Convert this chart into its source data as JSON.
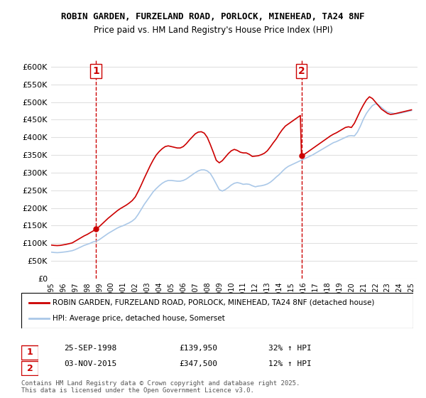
{
  "title1": "ROBIN GARDEN, FURZELAND ROAD, PORLOCK, MINEHEAD, TA24 8NF",
  "title2": "Price paid vs. HM Land Registry's House Price Index (HPI)",
  "ylabel": "",
  "ylim": [
    0,
    620000
  ],
  "yticks": [
    0,
    50000,
    100000,
    150000,
    200000,
    250000,
    300000,
    350000,
    400000,
    450000,
    500000,
    550000,
    600000
  ],
  "ytick_labels": [
    "£0",
    "£50K",
    "£100K",
    "£150K",
    "£200K",
    "£250K",
    "£300K",
    "£350K",
    "£400K",
    "£450K",
    "£500K",
    "£550K",
    "£600K"
  ],
  "background_color": "#ffffff",
  "grid_color": "#e0e0e0",
  "line1_color": "#cc0000",
  "line2_color": "#aac8e8",
  "marker_color": "#cc0000",
  "vline_color": "#cc0000",
  "legend_label1": "ROBIN GARDEN, FURZELAND ROAD, PORLOCK, MINEHEAD, TA24 8NF (detached house)",
  "legend_label2": "HPI: Average price, detached house, Somerset",
  "purchase1": {
    "date": "25-SEP-1998",
    "price": 139950,
    "pct": "32% ↑ HPI",
    "label": "1",
    "x": 1998.73
  },
  "purchase2": {
    "date": "03-NOV-2015",
    "price": 347500,
    "pct": "12% ↑ HPI",
    "label": "2",
    "x": 2015.84
  },
  "footer": "Contains HM Land Registry data © Crown copyright and database right 2025.\nThis data is licensed under the Open Government Licence v3.0.",
  "hpi_data": {
    "years": [
      1995.0,
      1995.25,
      1995.5,
      1995.75,
      1996.0,
      1996.25,
      1996.5,
      1996.75,
      1997.0,
      1997.25,
      1997.5,
      1997.75,
      1998.0,
      1998.25,
      1998.5,
      1998.75,
      1999.0,
      1999.25,
      1999.5,
      1999.75,
      2000.0,
      2000.25,
      2000.5,
      2000.75,
      2001.0,
      2001.25,
      2001.5,
      2001.75,
      2002.0,
      2002.25,
      2002.5,
      2002.75,
      2003.0,
      2003.25,
      2003.5,
      2003.75,
      2004.0,
      2004.25,
      2004.5,
      2004.75,
      2005.0,
      2005.25,
      2005.5,
      2005.75,
      2006.0,
      2006.25,
      2006.5,
      2006.75,
      2007.0,
      2007.25,
      2007.5,
      2007.75,
      2008.0,
      2008.25,
      2008.5,
      2008.75,
      2009.0,
      2009.25,
      2009.5,
      2009.75,
      2010.0,
      2010.25,
      2010.5,
      2010.75,
      2011.0,
      2011.25,
      2011.5,
      2011.75,
      2012.0,
      2012.25,
      2012.5,
      2012.75,
      2013.0,
      2013.25,
      2013.5,
      2013.75,
      2014.0,
      2014.25,
      2014.5,
      2014.75,
      2015.0,
      2015.25,
      2015.5,
      2015.75,
      2016.0,
      2016.25,
      2016.5,
      2016.75,
      2017.0,
      2017.25,
      2017.5,
      2017.75,
      2018.0,
      2018.25,
      2018.5,
      2018.75,
      2019.0,
      2019.25,
      2019.5,
      2019.75,
      2020.0,
      2020.25,
      2020.5,
      2020.75,
      2021.0,
      2021.25,
      2021.5,
      2021.75,
      2022.0,
      2022.25,
      2022.5,
      2022.75,
      2023.0,
      2023.25,
      2023.5,
      2023.75,
      2024.0,
      2024.25,
      2024.5,
      2024.75,
      2025.0
    ],
    "values": [
      75000,
      74000,
      73500,
      74000,
      75000,
      76000,
      77500,
      79000,
      82000,
      86000,
      90000,
      94000,
      97000,
      100000,
      104000,
      106000,
      110000,
      116000,
      122000,
      128000,
      133000,
      138000,
      143000,
      147000,
      150000,
      154000,
      158000,
      163000,
      170000,
      182000,
      196000,
      210000,
      222000,
      234000,
      246000,
      255000,
      263000,
      270000,
      275000,
      278000,
      278000,
      277000,
      276000,
      276000,
      278000,
      282000,
      288000,
      294000,
      300000,
      305000,
      308000,
      308000,
      305000,
      298000,
      284000,
      268000,
      252000,
      248000,
      252000,
      258000,
      265000,
      270000,
      272000,
      270000,
      267000,
      268000,
      267000,
      263000,
      260000,
      262000,
      263000,
      265000,
      268000,
      273000,
      280000,
      288000,
      295000,
      304000,
      312000,
      318000,
      322000,
      326000,
      330000,
      334000,
      338000,
      342000,
      346000,
      350000,
      355000,
      360000,
      365000,
      370000,
      375000,
      380000,
      385000,
      388000,
      392000,
      396000,
      400000,
      404000,
      405000,
      404000,
      415000,
      432000,
      452000,
      468000,
      480000,
      490000,
      495000,
      492000,
      485000,
      478000,
      472000,
      470000,
      468000,
      467000,
      468000,
      470000,
      472000,
      474000,
      476000
    ]
  },
  "price_data": {
    "years": [
      1995.0,
      1995.25,
      1995.5,
      1995.75,
      1996.0,
      1996.25,
      1996.5,
      1996.75,
      1997.0,
      1997.25,
      1997.5,
      1997.75,
      1998.0,
      1998.25,
      1998.5,
      1998.73,
      1998.75,
      1999.0,
      1999.25,
      1999.5,
      1999.75,
      2000.0,
      2000.25,
      2000.5,
      2000.75,
      2001.0,
      2001.25,
      2001.5,
      2001.75,
      2002.0,
      2002.25,
      2002.5,
      2002.75,
      2003.0,
      2003.25,
      2003.5,
      2003.75,
      2004.0,
      2004.25,
      2004.5,
      2004.75,
      2005.0,
      2005.25,
      2005.5,
      2005.75,
      2006.0,
      2006.25,
      2006.5,
      2006.75,
      2007.0,
      2007.25,
      2007.5,
      2007.75,
      2008.0,
      2008.25,
      2008.5,
      2008.75,
      2009.0,
      2009.25,
      2009.5,
      2009.75,
      2010.0,
      2010.25,
      2010.5,
      2010.75,
      2011.0,
      2011.25,
      2011.5,
      2011.75,
      2012.0,
      2012.25,
      2012.5,
      2012.75,
      2013.0,
      2013.25,
      2013.5,
      2013.75,
      2014.0,
      2014.25,
      2014.5,
      2014.75,
      2015.0,
      2015.25,
      2015.5,
      2015.75,
      2015.84,
      2016.0,
      2016.25,
      2016.5,
      2016.75,
      2017.0,
      2017.25,
      2017.5,
      2017.75,
      2018.0,
      2018.25,
      2018.5,
      2018.75,
      2019.0,
      2019.25,
      2019.5,
      2019.75,
      2020.0,
      2020.25,
      2020.5,
      2020.75,
      2021.0,
      2021.25,
      2021.5,
      2021.75,
      2022.0,
      2022.25,
      2022.5,
      2022.75,
      2023.0,
      2023.25,
      2023.5,
      2023.75,
      2024.0,
      2024.25,
      2024.5,
      2024.75,
      2025.0
    ],
    "values": [
      95000,
      94000,
      93500,
      94000,
      95500,
      97000,
      99000,
      101000,
      106000,
      111000,
      116000,
      121000,
      125000,
      130000,
      135000,
      139950,
      140000,
      147000,
      155000,
      163000,
      171000,
      178000,
      185000,
      192000,
      198000,
      203000,
      208000,
      214000,
      221000,
      231000,
      247000,
      265000,
      284000,
      302000,
      320000,
      336000,
      350000,
      360000,
      368000,
      374000,
      376000,
      374000,
      372000,
      370000,
      370000,
      374000,
      382000,
      392000,
      401000,
      410000,
      415000,
      416000,
      412000,
      400000,
      380000,
      358000,
      335000,
      328000,
      334000,
      344000,
      354000,
      362000,
      366000,
      363000,
      358000,
      356000,
      356000,
      352000,
      346000,
      347000,
      348000,
      351000,
      355000,
      362000,
      373000,
      385000,
      396000,
      410000,
      422000,
      432000,
      438000,
      444000,
      450000,
      456000,
      462000,
      347500,
      350000,
      356000,
      362000,
      368000,
      374000,
      380000,
      386000,
      392000,
      398000,
      404000,
      409000,
      413000,
      418000,
      423000,
      428000,
      430000,
      428000,
      440000,
      458000,
      476000,
      492000,
      506000,
      515000,
      510000,
      500000,
      490000,
      480000,
      474000,
      468000,
      465000,
      466000,
      468000,
      470000,
      472000,
      474000,
      476000,
      478000
    ]
  }
}
